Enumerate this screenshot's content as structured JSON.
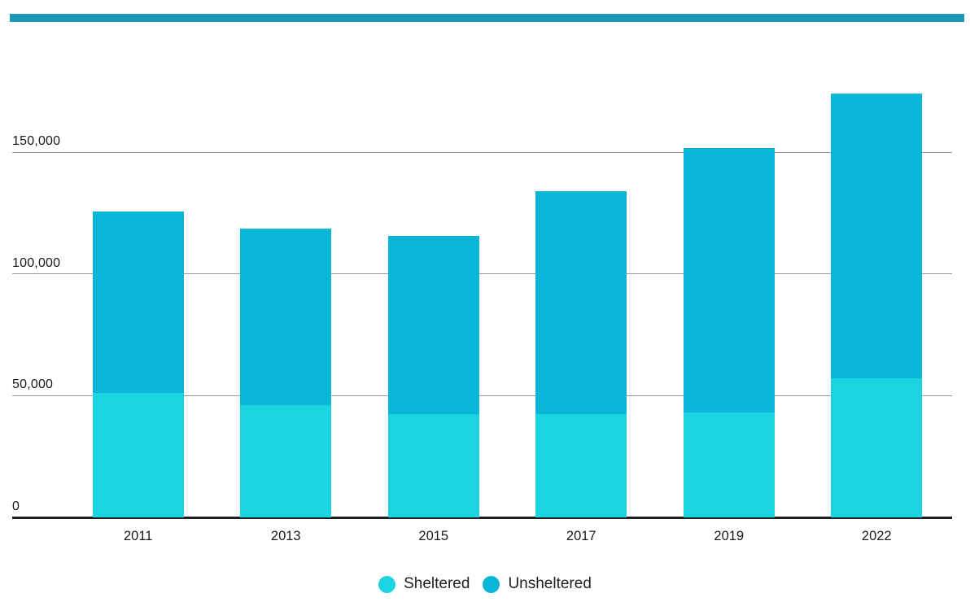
{
  "page": {
    "background": "#ffffff",
    "top_rule_color": "#1d97b5"
  },
  "chart_data": {
    "type": "bar",
    "stacked": true,
    "title": "",
    "xlabel": "",
    "ylabel": "",
    "categories": [
      "2011",
      "2013",
      "2015",
      "2017",
      "2019",
      "2022"
    ],
    "series": [
      {
        "name": "Sheltered",
        "color": "#1bd4e2",
        "values": [
          51000,
          46000,
          42500,
          42500,
          43000,
          57000
        ]
      },
      {
        "name": "Unsheltered",
        "color": "#09b6d7",
        "values": [
          74500,
          72500,
          73000,
          91500,
          108500,
          117000
        ]
      }
    ],
    "totals": [
      125500,
      118500,
      115500,
      134000,
      151500,
      174000
    ],
    "y_ticks": [
      0,
      50000,
      100000,
      150000
    ],
    "y_tick_labels": [
      "0",
      "50,000",
      "100,000",
      "150,000"
    ],
    "ylim": [
      0,
      212000
    ],
    "grid": "horizontal",
    "gridline_color": "#999999",
    "axis_line_color": "#1f1f1f",
    "text_color": "#1a1a1a",
    "legend_position": "bottom"
  }
}
